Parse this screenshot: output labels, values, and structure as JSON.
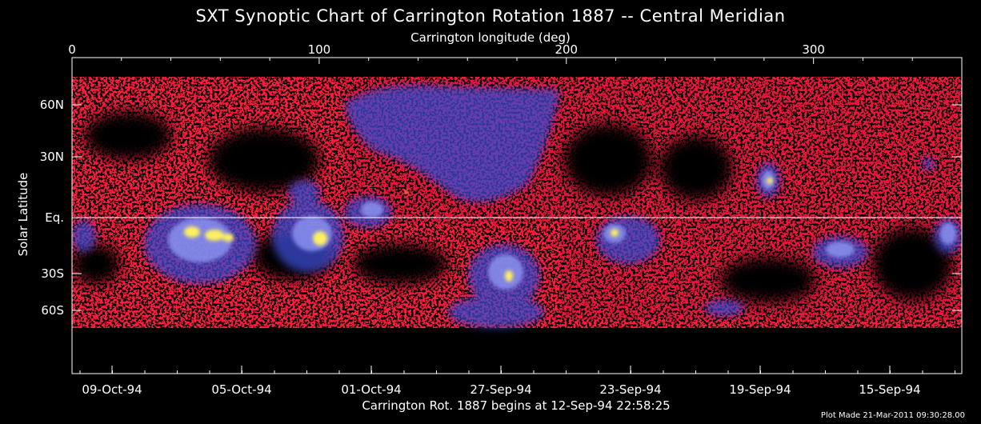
{
  "chart_data": {
    "type": "heatmap",
    "title": "SXT Synoptic Chart of Carrington Rotation 1887 -- Central Meridian",
    "top_axis": {
      "label": "Carrington longitude (deg)",
      "range": [
        0,
        360
      ],
      "ticks": [
        0,
        100,
        200,
        300
      ],
      "tick_labels": [
        "0",
        "100",
        "200",
        "300"
      ]
    },
    "y_axis": {
      "label": "Solar Latitude",
      "ticks": [
        60,
        30,
        0,
        -30,
        -60
      ],
      "tick_labels": [
        "60N",
        "30N",
        "Eq.",
        "30S",
        "60S"
      ]
    },
    "bottom_axis": {
      "label": "Carrington Rot. 1887 begins at 12-Sep-94 22:58:25",
      "tick_labels": [
        "09-Oct-94",
        "05-Oct-94",
        "01-Oct-94",
        "27-Sep-94",
        "23-Sep-94",
        "19-Sep-94",
        "15-Sep-94"
      ]
    },
    "equator_line": true,
    "colormap": [
      "#ff1a3c",
      "#3a4bd0",
      "#8a92f0",
      "#fff060"
    ],
    "plot_made": "Plot Made 21-Mar-2011 09:30:28.00"
  }
}
